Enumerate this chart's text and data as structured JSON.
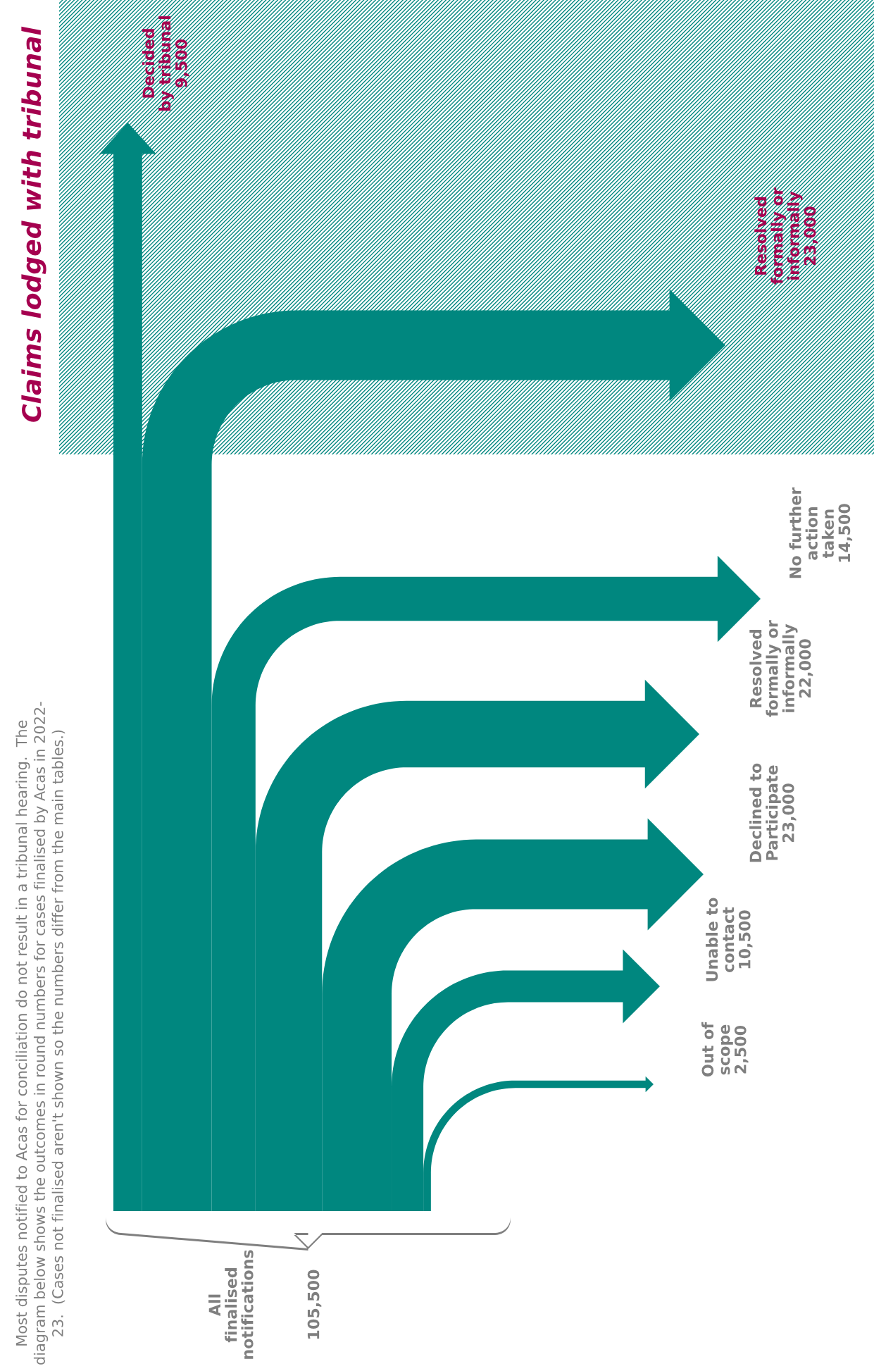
{
  "chart_data": {
    "type": "other",
    "categories": [
      "All\nfinalised\nnotifications",
      "Decided\nby tribunal",
      "Resolved\nformally or\ninformally",
      "No further\naction\ntaken",
      "Resolved\nformally or\ninformally",
      "Declined to\nParticipate",
      "Unable to\ncontact",
      "Out of\nscope"
    ],
    "values": [
      105500,
      9500,
      23000,
      14500,
      22000,
      23000,
      10500,
      2500
    ],
    "value_labels": [
      "105,500",
      "9,500",
      "23,000",
      "14,500",
      "22,000",
      "23,000",
      "10,500",
      "2,500"
    ],
    "color": "#00877f",
    "annotations": [
      "Most disputes notified to Acas for conciliation do not result in a tribunal hearing.  The\ndiagram below shows the outcomes in round numbers for cases finalised by Acas in 2022-\n23.  (Cases not finalised aren't shown so the numbers differ from the main tables.)",
      "Claims lodged with tribunal"
    ]
  }
}
